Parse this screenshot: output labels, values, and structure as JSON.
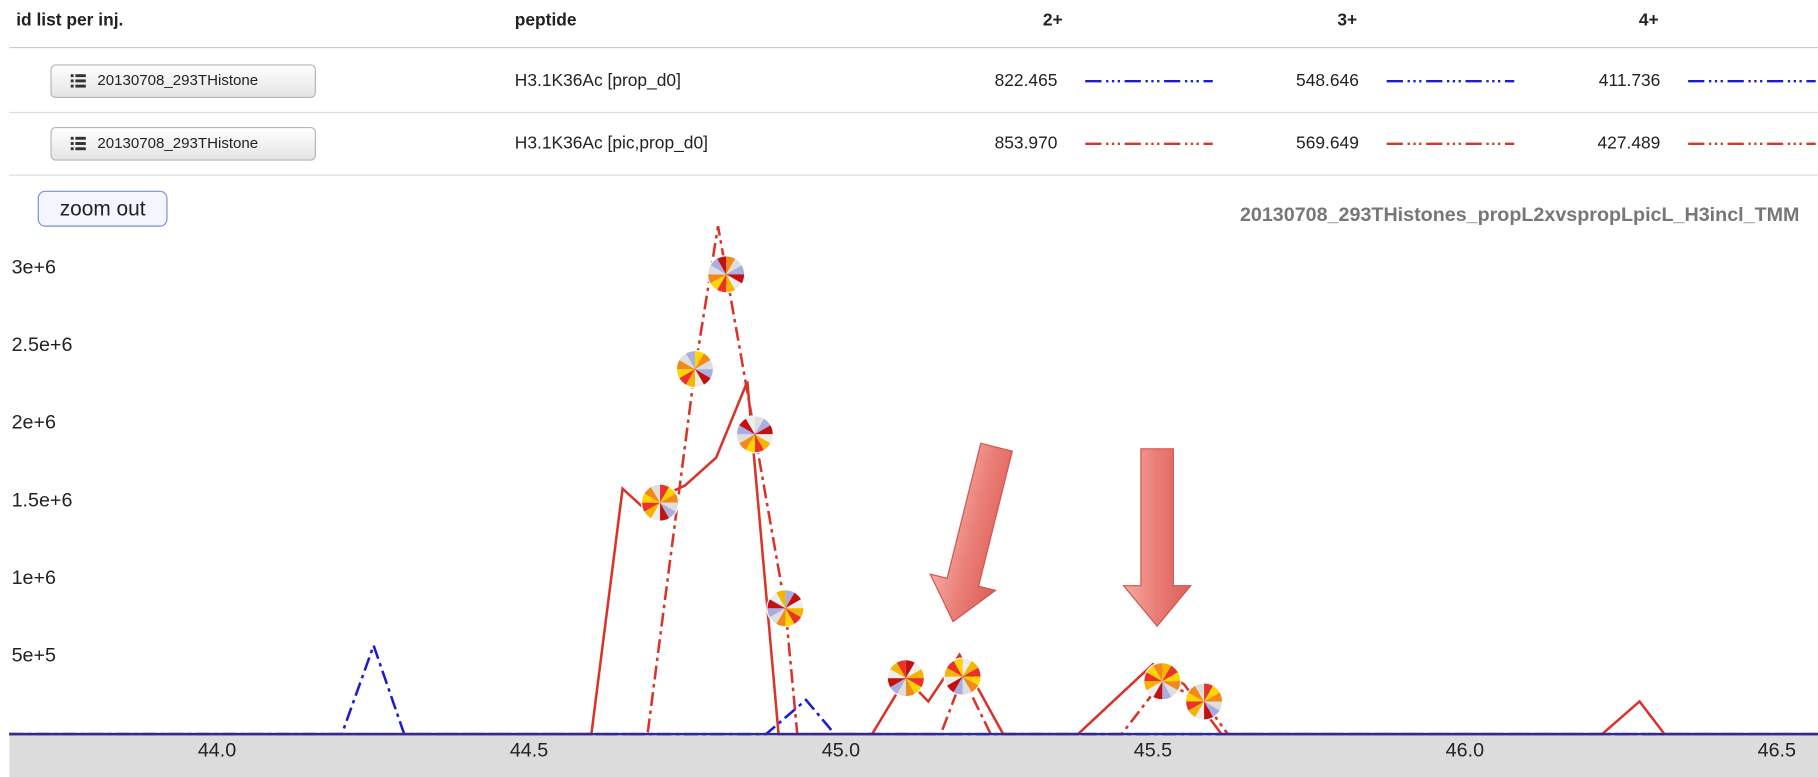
{
  "table": {
    "headers": [
      "id list per inj.",
      "peptide",
      "2+",
      "3+",
      "4+"
    ],
    "rows": [
      [
        "20130708_293THistone",
        "H3.1K36Ac [prop_d0]",
        "822.465",
        "548.646",
        "411.736"
      ],
      [
        "20130708_293THistone",
        "H3.1K36Ac [pic,prop_d0]",
        "853.970",
        "569.649",
        "427.489"
      ]
    ],
    "row_colors": [
      "#1c1ccc",
      "#d8352a"
    ]
  },
  "zoom_button": "zoom out",
  "chart_data": {
    "type": "line",
    "title": "20130708_293THistones_propL2xvspropLpicL_H3incl_TMM",
    "xlim": [
      43.667,
      46.566
    ],
    "ylim": [
      0,
      3300000
    ],
    "xticks": [
      {
        "value": 44,
        "label": "44.0"
      },
      44.5,
      {
        "value": 45,
        "label": "45.0"
      },
      45.5,
      {
        "value": 46,
        "label": "46.0"
      },
      46.5
    ],
    "yticks": [
      {
        "value": 500000,
        "label": "5e+5"
      },
      {
        "value": 1000000,
        "label": "1e+6"
      },
      {
        "value": 1500000,
        "label": "1.5e+6"
      },
      {
        "value": 2000000,
        "label": "2e+6"
      },
      {
        "value": 2500000,
        "label": "2.5e+6"
      },
      {
        "value": 3000000,
        "label": "3e+6"
      }
    ],
    "grid": false,
    "series": [
      {
        "color": "#1c1ccc",
        "dash": "dashdot",
        "x": [
          43.667,
          44.2,
          44.251,
          44.3,
          44.88,
          44.944,
          44.99,
          46.566
        ],
        "values": [
          0,
          0,
          570000,
          0,
          0,
          220000,
          0,
          0
        ]
      },
      {
        "color": "#d8352a",
        "dash": "dashdot",
        "x": [
          43.667,
          44.69,
          44.766,
          44.803,
          44.862,
          44.911,
          44.93,
          45.16,
          45.195,
          45.24,
          45.45,
          45.515,
          45.582,
          45.62,
          46.566
        ],
        "values": [
          0,
          0,
          2350000,
          3270000,
          1930000,
          810000,
          0,
          0,
          370000,
          0,
          0,
          340000,
          210000,
          0,
          0
        ]
      },
      {
        "color": "#d8352a",
        "dash": "solid",
        "x": [
          43.667,
          44.6,
          44.65,
          44.68,
          44.75,
          44.8,
          44.85,
          44.9,
          45.05,
          45.104,
          45.14,
          45.19,
          45.26,
          45.38,
          45.5,
          45.55,
          45.61,
          46.22,
          46.28,
          46.32,
          46.566
        ],
        "values": [
          0,
          0,
          1580000,
          1470000,
          1600000,
          1780000,
          2270000,
          0,
          0,
          360000,
          210000,
          510000,
          0,
          0,
          450000,
          320000,
          0,
          0,
          210000,
          0,
          0
        ]
      }
    ],
    "id_points": {
      "x": [
        44.71,
        44.766,
        44.816,
        44.862,
        44.911,
        45.104,
        45.195,
        45.515,
        45.582
      ],
      "values": [
        1490000,
        2350000,
        2960000,
        1930000,
        810000,
        360000,
        370000,
        340000,
        210000
      ]
    }
  }
}
